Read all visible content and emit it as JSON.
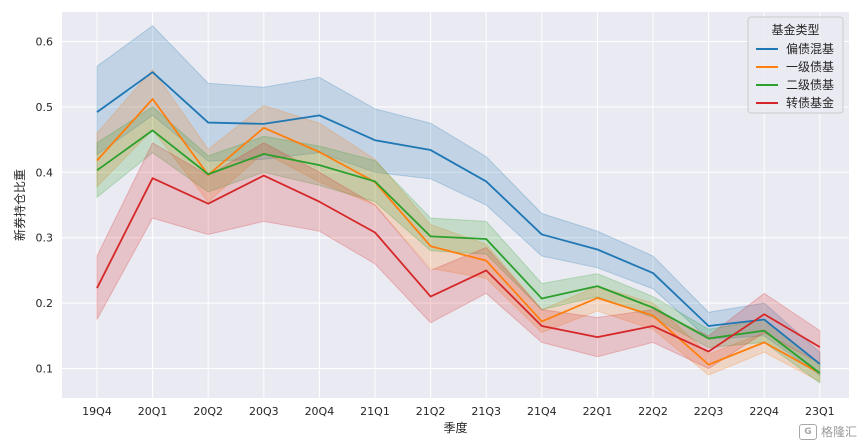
{
  "chart_data": {
    "type": "line",
    "xlabel": "季度",
    "ylabel": "新券持仓比重",
    "categories": [
      "19Q4",
      "20Q1",
      "20Q2",
      "20Q3",
      "20Q4",
      "21Q1",
      "21Q2",
      "21Q3",
      "21Q4",
      "22Q1",
      "22Q2",
      "22Q3",
      "22Q4",
      "23Q1"
    ],
    "yticks": [
      0.1,
      0.2,
      0.3,
      0.4,
      0.5,
      0.6
    ],
    "ylim": [
      0.055,
      0.645
    ],
    "grid": true,
    "legend_title": "基金类型",
    "legend_position": "top-right",
    "series": [
      {
        "name": "偏债混基",
        "color": "#1f77b4",
        "values": [
          0.492,
          0.553,
          0.476,
          0.474,
          0.487,
          0.449,
          0.434,
          0.386,
          0.305,
          0.282,
          0.246,
          0.165,
          0.175,
          0.107
        ],
        "lower": [
          0.427,
          0.487,
          0.417,
          0.42,
          0.43,
          0.4,
          0.39,
          0.35,
          0.272,
          0.254,
          0.222,
          0.145,
          0.15,
          0.09
        ],
        "upper": [
          0.562,
          0.624,
          0.536,
          0.53,
          0.545,
          0.497,
          0.475,
          0.424,
          0.337,
          0.31,
          0.272,
          0.186,
          0.2,
          0.125
        ]
      },
      {
        "name": "一级债基",
        "color": "#ff7f0e",
        "values": [
          0.418,
          0.512,
          0.396,
          0.468,
          0.431,
          0.385,
          0.287,
          0.265,
          0.172,
          0.208,
          0.181,
          0.106,
          0.14,
          0.093
        ],
        "lower": [
          0.378,
          0.465,
          0.355,
          0.43,
          0.385,
          0.35,
          0.253,
          0.238,
          0.155,
          0.188,
          0.16,
          0.09,
          0.125,
          0.08
        ],
        "upper": [
          0.46,
          0.557,
          0.435,
          0.502,
          0.475,
          0.42,
          0.32,
          0.29,
          0.19,
          0.226,
          0.2,
          0.122,
          0.155,
          0.106
        ]
      },
      {
        "name": "二级债基",
        "color": "#2ca02c",
        "values": [
          0.403,
          0.464,
          0.397,
          0.428,
          0.411,
          0.386,
          0.302,
          0.298,
          0.207,
          0.226,
          0.193,
          0.146,
          0.158,
          0.093
        ],
        "lower": [
          0.362,
          0.43,
          0.37,
          0.4,
          0.38,
          0.355,
          0.28,
          0.275,
          0.19,
          0.21,
          0.178,
          0.132,
          0.14,
          0.078
        ],
        "upper": [
          0.445,
          0.5,
          0.425,
          0.455,
          0.44,
          0.418,
          0.33,
          0.325,
          0.23,
          0.245,
          0.21,
          0.16,
          0.175,
          0.108
        ]
      },
      {
        "name": "转债基金",
        "color": "#d62728",
        "values": [
          0.223,
          0.391,
          0.352,
          0.395,
          0.355,
          0.308,
          0.21,
          0.25,
          0.165,
          0.148,
          0.165,
          0.126,
          0.183,
          0.133
        ],
        "lower": [
          0.175,
          0.33,
          0.305,
          0.325,
          0.31,
          0.26,
          0.17,
          0.215,
          0.14,
          0.118,
          0.14,
          0.1,
          0.155,
          0.108
        ],
        "upper": [
          0.272,
          0.445,
          0.395,
          0.445,
          0.4,
          0.35,
          0.25,
          0.285,
          0.19,
          0.178,
          0.19,
          0.15,
          0.215,
          0.158
        ]
      }
    ]
  },
  "watermark": {
    "logo": "G",
    "text": "格隆汇"
  }
}
